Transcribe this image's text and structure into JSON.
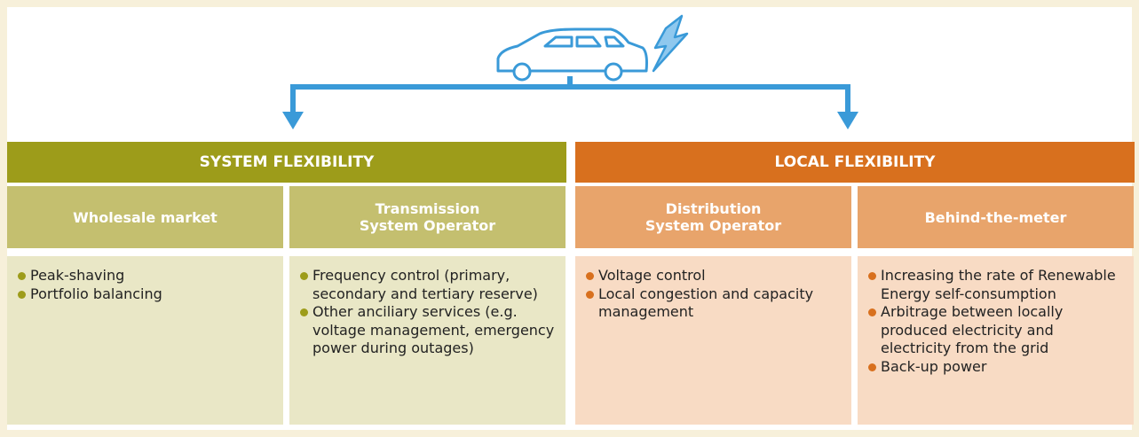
{
  "columns": [
    {
      "title": "SYSTEM FLEXIBILITY",
      "theme": "green",
      "cells": [
        {
          "heading": [
            "Wholesale market"
          ],
          "items": [
            "Peak-shaving",
            "Portfolio balancing"
          ]
        },
        {
          "heading": [
            "Transmission",
            "System Operator"
          ],
          "items": [
            "Frequency control (primary, secondary and tertiary reserve)",
            "Other anciliary services (e.g. voltage management, emergency power during outages)"
          ]
        }
      ]
    },
    {
      "title": "LOCAL FLEXIBILITY",
      "theme": "orange",
      "cells": [
        {
          "heading": [
            "Distribution",
            "System Operator"
          ],
          "items": [
            "Voltage control",
            "Local congestion and capacity management"
          ]
        },
        {
          "heading": [
            "Behind-the-meter"
          ],
          "items": [
            "Increasing the rate of Renewable Energy self-consumption",
            "Arbitrage between locally produced electricity and electricity from the grid",
            "Back-up power"
          ]
        }
      ]
    }
  ]
}
